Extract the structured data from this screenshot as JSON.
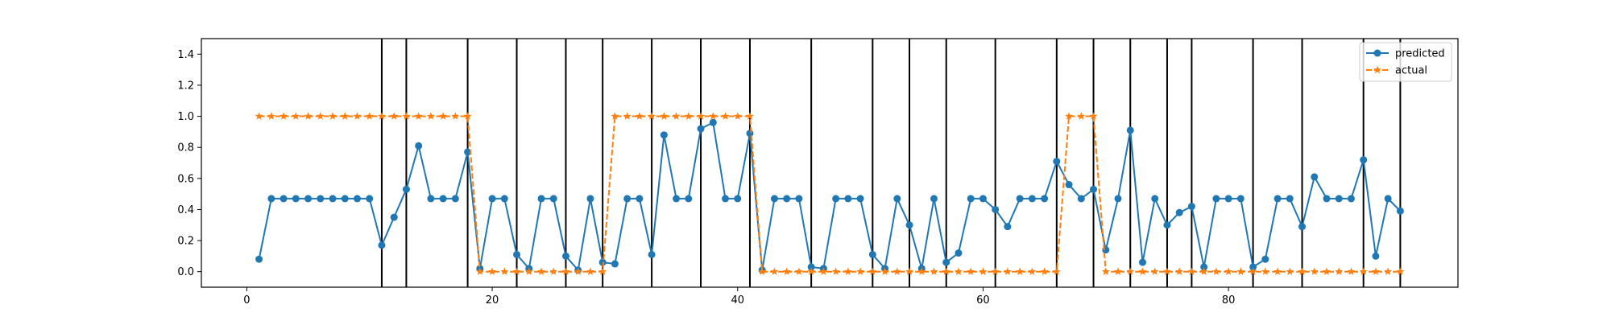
{
  "chart_data": {
    "type": "line",
    "title": "",
    "xlabel": "",
    "ylabel": "",
    "xlim": [
      -3.7,
      98.7
    ],
    "ylim": [
      -0.1,
      1.5
    ],
    "xticks": [
      0,
      20,
      40,
      60,
      80
    ],
    "xtick_labels": [
      "0",
      "20",
      "40",
      "60",
      "80"
    ],
    "yticks": [
      0.0,
      0.2,
      0.4,
      0.6,
      0.8,
      1.0,
      1.2,
      1.4
    ],
    "ytick_labels": [
      "0.0",
      "0.2",
      "0.4",
      "0.6",
      "0.8",
      "1.0",
      "1.2",
      "1.4"
    ],
    "grid": false,
    "legend_position": "upper-right",
    "vertical_lines_x": [
      11,
      13,
      18,
      22,
      26,
      29,
      33,
      37,
      41,
      46,
      51,
      54,
      57,
      61,
      66,
      69,
      72,
      75,
      77,
      82,
      86,
      91,
      94
    ],
    "x": [
      1,
      2,
      3,
      4,
      5,
      6,
      7,
      8,
      9,
      10,
      11,
      12,
      13,
      14,
      15,
      16,
      17,
      18,
      19,
      20,
      21,
      22,
      23,
      24,
      25,
      26,
      27,
      28,
      29,
      30,
      31,
      32,
      33,
      34,
      35,
      36,
      37,
      38,
      39,
      40,
      41,
      42,
      43,
      44,
      45,
      46,
      47,
      48,
      49,
      50,
      51,
      52,
      53,
      54,
      55,
      56,
      57,
      58,
      59,
      60,
      61,
      62,
      63,
      64,
      65,
      66,
      67,
      68,
      69,
      70,
      71,
      72,
      73,
      74,
      75,
      76,
      77,
      78,
      79,
      80,
      81,
      82,
      83,
      84,
      85,
      86,
      87,
      88,
      89,
      90,
      91,
      92,
      93,
      94
    ],
    "series": [
      {
        "name": "predicted",
        "color": "#1f77b4",
        "marker": "circle",
        "linestyle": "solid",
        "values": [
          0.08,
          0.47,
          0.47,
          0.47,
          0.47,
          0.47,
          0.47,
          0.47,
          0.47,
          0.47,
          0.17,
          0.35,
          0.53,
          0.81,
          0.47,
          0.47,
          0.47,
          0.77,
          0.02,
          0.47,
          0.47,
          0.11,
          0.02,
          0.47,
          0.47,
          0.1,
          0.01,
          0.47,
          0.06,
          0.05,
          0.47,
          0.47,
          0.11,
          0.88,
          0.47,
          0.47,
          0.92,
          0.96,
          0.47,
          0.47,
          0.89,
          0.01,
          0.47,
          0.47,
          0.47,
          0.03,
          0.02,
          0.47,
          0.47,
          0.47,
          0.11,
          0.02,
          0.47,
          0.3,
          0.02,
          0.47,
          0.06,
          0.12,
          0.47,
          0.47,
          0.4,
          0.29,
          0.47,
          0.47,
          0.47,
          0.71,
          0.56,
          0.47,
          0.53,
          0.14,
          0.47,
          0.91,
          0.06,
          0.47,
          0.3,
          0.38,
          0.42,
          0.03,
          0.47,
          0.47,
          0.47,
          0.03,
          0.08,
          0.47,
          0.47,
          0.29,
          0.61,
          0.47,
          0.47,
          0.47,
          0.72,
          0.1,
          0.47,
          0.39
        ]
      },
      {
        "name": "actual",
        "color": "#ff7f0e",
        "marker": "star",
        "linestyle": "dashed",
        "values": [
          1,
          1,
          1,
          1,
          1,
          1,
          1,
          1,
          1,
          1,
          1,
          1,
          1,
          1,
          1,
          1,
          1,
          1,
          0,
          0,
          0,
          0,
          0,
          0,
          0,
          0,
          0,
          0,
          0,
          1,
          1,
          1,
          1,
          1,
          1,
          1,
          1,
          1,
          1,
          1,
          1,
          0,
          0,
          0,
          0,
          0,
          0,
          0,
          0,
          0,
          0,
          0,
          0,
          0,
          0,
          0,
          0,
          0,
          0,
          0,
          0,
          0,
          0,
          0,
          0,
          0,
          1,
          1,
          1,
          0,
          0,
          0,
          0,
          0,
          0,
          0,
          0,
          0,
          0,
          0,
          0,
          0,
          0,
          0,
          0,
          0,
          0,
          0,
          0,
          0,
          0,
          0,
          0,
          0
        ]
      }
    ]
  }
}
